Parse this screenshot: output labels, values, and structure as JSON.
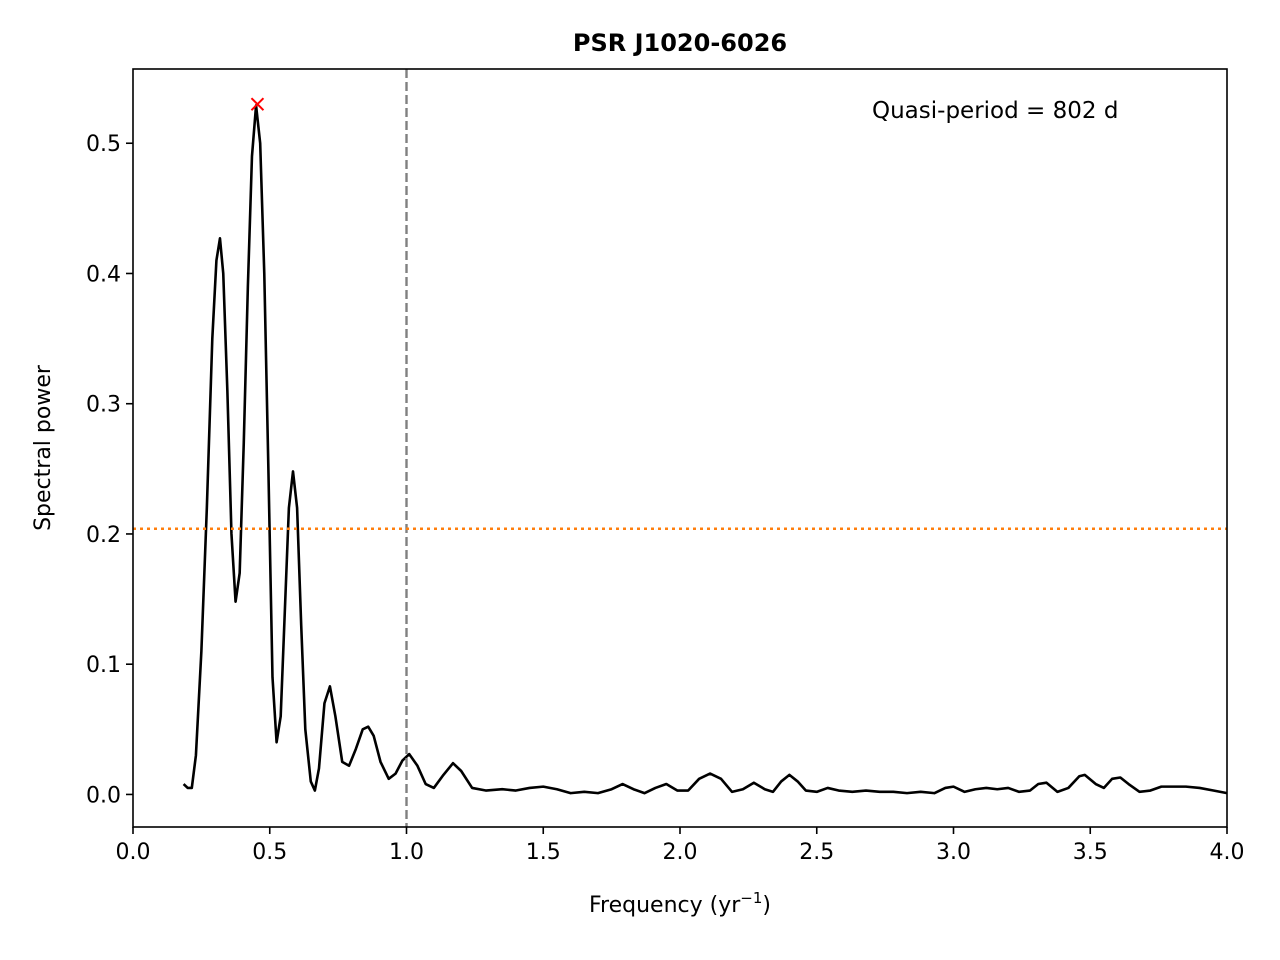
{
  "chart_data": {
    "type": "line",
    "title": "PSR J1020-6026",
    "xlabel_prefix": "Frequency (yr",
    "xlabel_sup": "−1",
    "xlabel_suffix": ")",
    "ylabel": "Spectral power",
    "xlim": [
      0.0,
      4.0
    ],
    "ylim": [
      -0.025,
      0.557
    ],
    "x_ticks": [
      0.0,
      0.5,
      1.0,
      1.5,
      2.0,
      2.5,
      3.0,
      3.5,
      4.0
    ],
    "x_tick_labels": [
      "0.0",
      "0.5",
      "1.0",
      "1.5",
      "2.0",
      "2.5",
      "3.0",
      "3.5",
      "4.0"
    ],
    "y_ticks": [
      0.0,
      0.1,
      0.2,
      0.3,
      0.4,
      0.5
    ],
    "y_tick_labels": [
      "0.0",
      "0.1",
      "0.2",
      "0.3",
      "0.4",
      "0.5"
    ],
    "annotation": "Quasi-period = 802 d",
    "grid": false,
    "series": [
      {
        "color": "#000000",
        "points": [
          [
            0.185,
            0.008
          ],
          [
            0.2,
            0.005
          ],
          [
            0.215,
            0.005
          ],
          [
            0.23,
            0.03
          ],
          [
            0.25,
            0.11
          ],
          [
            0.27,
            0.22
          ],
          [
            0.29,
            0.35
          ],
          [
            0.305,
            0.41
          ],
          [
            0.318,
            0.427
          ],
          [
            0.33,
            0.4
          ],
          [
            0.345,
            0.31
          ],
          [
            0.36,
            0.2
          ],
          [
            0.375,
            0.148
          ],
          [
            0.39,
            0.17
          ],
          [
            0.405,
            0.27
          ],
          [
            0.42,
            0.39
          ],
          [
            0.435,
            0.49
          ],
          [
            0.45,
            0.529
          ],
          [
            0.465,
            0.5
          ],
          [
            0.48,
            0.4
          ],
          [
            0.495,
            0.25
          ],
          [
            0.51,
            0.09
          ],
          [
            0.525,
            0.04
          ],
          [
            0.54,
            0.06
          ],
          [
            0.555,
            0.14
          ],
          [
            0.57,
            0.22
          ],
          [
            0.585,
            0.248
          ],
          [
            0.6,
            0.22
          ],
          [
            0.615,
            0.13
          ],
          [
            0.63,
            0.05
          ],
          [
            0.65,
            0.01
          ],
          [
            0.665,
            0.003
          ],
          [
            0.68,
            0.02
          ],
          [
            0.7,
            0.07
          ],
          [
            0.72,
            0.083
          ],
          [
            0.74,
            0.06
          ],
          [
            0.765,
            0.025
          ],
          [
            0.79,
            0.022
          ],
          [
            0.815,
            0.035
          ],
          [
            0.84,
            0.05
          ],
          [
            0.86,
            0.052
          ],
          [
            0.88,
            0.045
          ],
          [
            0.905,
            0.025
          ],
          [
            0.935,
            0.012
          ],
          [
            0.96,
            0.016
          ],
          [
            0.985,
            0.026
          ],
          [
            1.01,
            0.031
          ],
          [
            1.04,
            0.022
          ],
          [
            1.07,
            0.008
          ],
          [
            1.1,
            0.005
          ],
          [
            1.135,
            0.015
          ],
          [
            1.17,
            0.024
          ],
          [
            1.2,
            0.018
          ],
          [
            1.24,
            0.005
          ],
          [
            1.29,
            0.003
          ],
          [
            1.35,
            0.004
          ],
          [
            1.4,
            0.003
          ],
          [
            1.45,
            0.005
          ],
          [
            1.5,
            0.006
          ],
          [
            1.55,
            0.004
          ],
          [
            1.6,
            0.001
          ],
          [
            1.65,
            0.002
          ],
          [
            1.7,
            0.001
          ],
          [
            1.75,
            0.004
          ],
          [
            1.79,
            0.008
          ],
          [
            1.83,
            0.004
          ],
          [
            1.87,
            0.001
          ],
          [
            1.91,
            0.005
          ],
          [
            1.95,
            0.008
          ],
          [
            1.99,
            0.003
          ],
          [
            2.03,
            0.003
          ],
          [
            2.07,
            0.012
          ],
          [
            2.11,
            0.016
          ],
          [
            2.15,
            0.012
          ],
          [
            2.19,
            0.002
          ],
          [
            2.23,
            0.004
          ],
          [
            2.27,
            0.009
          ],
          [
            2.31,
            0.004
          ],
          [
            2.34,
            0.002
          ],
          [
            2.37,
            0.01
          ],
          [
            2.4,
            0.015
          ],
          [
            2.43,
            0.01
          ],
          [
            2.46,
            0.003
          ],
          [
            2.5,
            0.002
          ],
          [
            2.54,
            0.005
          ],
          [
            2.58,
            0.003
          ],
          [
            2.63,
            0.002
          ],
          [
            2.68,
            0.003
          ],
          [
            2.73,
            0.002
          ],
          [
            2.78,
            0.002
          ],
          [
            2.83,
            0.001
          ],
          [
            2.88,
            0.002
          ],
          [
            2.93,
            0.001
          ],
          [
            2.97,
            0.005
          ],
          [
            3.0,
            0.006
          ],
          [
            3.04,
            0.002
          ],
          [
            3.08,
            0.004
          ],
          [
            3.12,
            0.005
          ],
          [
            3.16,
            0.004
          ],
          [
            3.2,
            0.005
          ],
          [
            3.24,
            0.002
          ],
          [
            3.28,
            0.003
          ],
          [
            3.31,
            0.008
          ],
          [
            3.34,
            0.009
          ],
          [
            3.38,
            0.002
          ],
          [
            3.42,
            0.005
          ],
          [
            3.46,
            0.014
          ],
          [
            3.48,
            0.015
          ],
          [
            3.52,
            0.008
          ],
          [
            3.55,
            0.005
          ],
          [
            3.58,
            0.012
          ],
          [
            3.61,
            0.013
          ],
          [
            3.64,
            0.008
          ],
          [
            3.68,
            0.002
          ],
          [
            3.72,
            0.003
          ],
          [
            3.76,
            0.006
          ],
          [
            3.8,
            0.006
          ],
          [
            3.85,
            0.006
          ],
          [
            3.9,
            0.005
          ],
          [
            3.95,
            0.003
          ],
          [
            4.0,
            0.001
          ]
        ]
      }
    ],
    "peak_marker": {
      "x": 0.455,
      "y": 0.53,
      "marker": "x",
      "color": "#ff0000"
    },
    "hlines": [
      {
        "y": 0.204,
        "style": "dotted",
        "color": "#ff7f0e"
      }
    ],
    "vlines": [
      {
        "x": 1.0,
        "style": "dashed",
        "color": "#808080"
      }
    ]
  }
}
